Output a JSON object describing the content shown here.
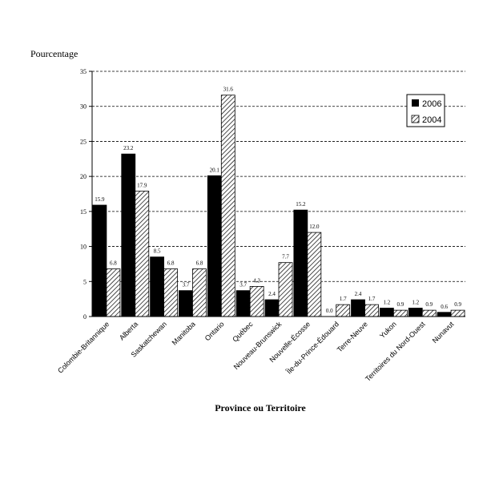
{
  "chart_data": {
    "type": "bar",
    "ylabel": "Pourcentage",
    "xlabel": "Province ou Territoire",
    "ylim": [
      0,
      35
    ],
    "yticks": [
      0,
      5,
      10,
      15,
      20,
      25,
      30,
      35
    ],
    "grid": true,
    "legend_position": "top-right",
    "categories": [
      "Colombie-Britannique",
      "Alberta",
      "Saskatchewan",
      "Manitoba",
      "Ontario",
      "Québec",
      "Nouveau-Brunswick",
      "Nouvelle-Écosse",
      "Île-du-Prince-Édouard",
      "Terre-Neuve",
      "Yukon",
      "Territoires du Nord-Ouest",
      "Nunavut"
    ],
    "series": [
      {
        "name": "2006",
        "color": "#000000",
        "pattern": "solid",
        "values": [
          15.9,
          23.2,
          8.5,
          3.7,
          20.1,
          3.7,
          2.4,
          15.2,
          0.0,
          2.4,
          1.2,
          1.2,
          0.6
        ],
        "labels": [
          "15.9",
          "23.2",
          "8.5",
          "3.7",
          "20.1",
          "3.7",
          "2.4",
          "15.2",
          "0.0",
          "2.4",
          "1.2",
          "1.2",
          "0.6"
        ]
      },
      {
        "name": "2004",
        "color": "#000000",
        "pattern": "hatched",
        "values": [
          6.8,
          17.9,
          6.8,
          6.8,
          31.6,
          4.3,
          7.7,
          12.0,
          1.7,
          1.7,
          0.9,
          0.9,
          0.9
        ],
        "labels": [
          "6.8",
          "17.9",
          "6.8",
          "6.8",
          "31.6",
          "4.3",
          "7.7",
          "12.0",
          "1.7",
          "1.7",
          "0.9",
          "0.9",
          "0.9"
        ]
      }
    ]
  }
}
